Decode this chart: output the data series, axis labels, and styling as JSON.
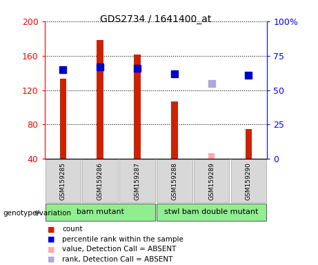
{
  "title": "GDS2734 / 1641400_at",
  "samples": [
    "GSM159285",
    "GSM159286",
    "GSM159287",
    "GSM159288",
    "GSM159289",
    "GSM159290"
  ],
  "count_values": [
    133,
    178,
    161,
    107,
    null,
    75
  ],
  "count_absent": [
    null,
    null,
    null,
    null,
    47,
    null
  ],
  "rank_values": [
    65,
    67,
    66,
    62,
    null,
    61
  ],
  "rank_absent": [
    null,
    null,
    null,
    null,
    55,
    null
  ],
  "ylim_left": [
    40,
    200
  ],
  "ylim_right": [
    0,
    100
  ],
  "yticks_left": [
    40,
    80,
    120,
    160,
    200
  ],
  "yticks_right": [
    0,
    25,
    50,
    75,
    100
  ],
  "group_ranges": [
    [
      0,
      2
    ],
    [
      3,
      5
    ]
  ],
  "group_labels": [
    "bam mutant",
    "stwl bam double mutant"
  ],
  "group_color": "#90ee90",
  "bar_color_present": "#cc2200",
  "bar_color_absent": "#ffaaaa",
  "rank_color_present": "#0000cc",
  "rank_color_absent": "#aaaadd",
  "bar_width": 0.18,
  "rank_marker_size": 7,
  "bg_color": "#d8d8d8",
  "plot_bg": "#ffffff",
  "legend_items": [
    {
      "label": "count",
      "color": "#cc2200"
    },
    {
      "label": "percentile rank within the sample",
      "color": "#0000cc"
    },
    {
      "label": "value, Detection Call = ABSENT",
      "color": "#ffaaaa"
    },
    {
      "label": "rank, Detection Call = ABSENT",
      "color": "#aaaadd"
    }
  ]
}
